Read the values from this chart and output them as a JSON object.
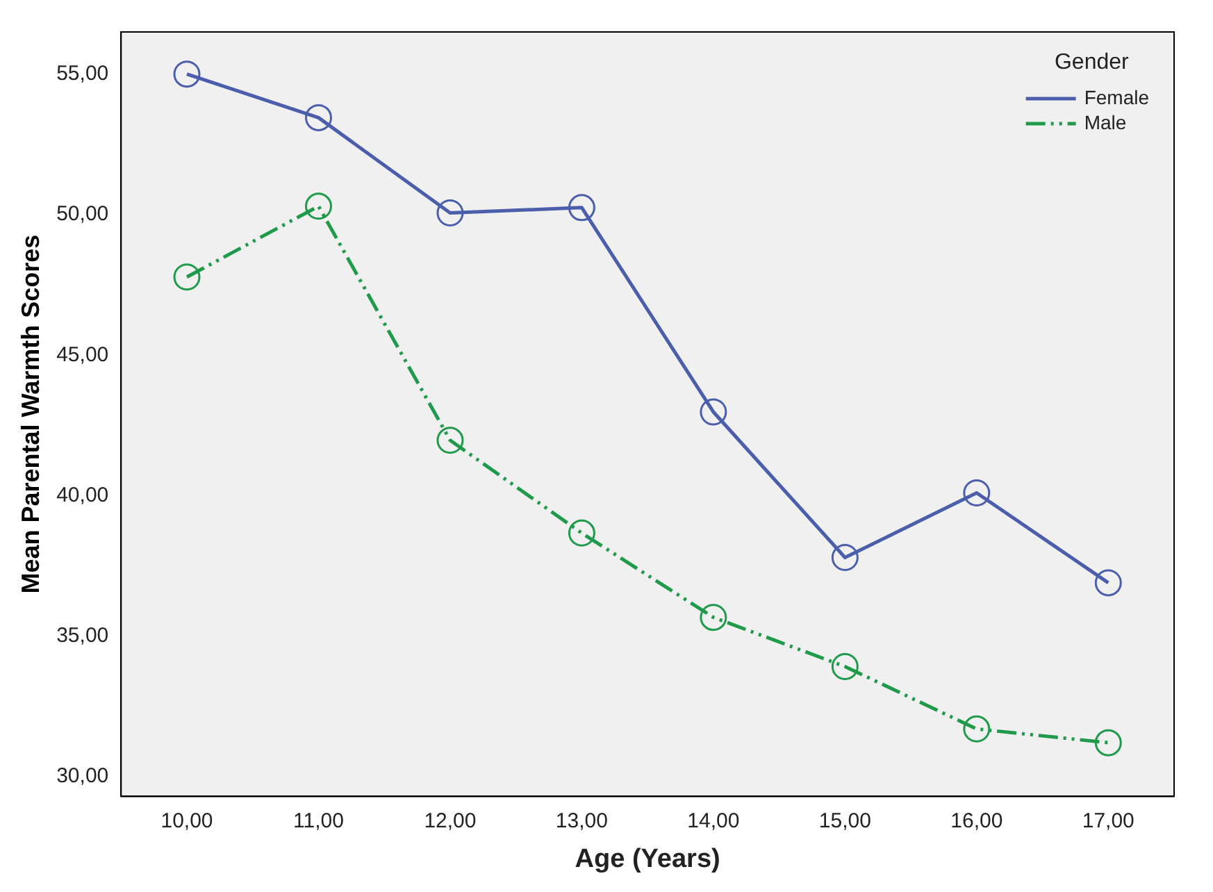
{
  "chart_data": {
    "type": "line",
    "xlabel": "Age (Years)",
    "ylabel": "Mean Parental Warmth Scores",
    "legend_title": "Gender",
    "categories": [
      "10,00",
      "11,00",
      "12,00",
      "13,00",
      "14,00",
      "15,00",
      "16,00",
      "17,00"
    ],
    "series": [
      {
        "name": "Female",
        "color": "#4a5eab",
        "line_style": "solid",
        "values": [
          55.0,
          53.45,
          50.06,
          50.25,
          42.98,
          37.8,
          40.1,
          36.9
        ]
      },
      {
        "name": "Male",
        "color": "#1f9a4a",
        "line_style": "dashed",
        "values": [
          47.78,
          50.3,
          41.97,
          38.67,
          35.67,
          33.92,
          31.7,
          31.21
        ]
      }
    ],
    "ylim": [
      29.3,
      56.5
    ],
    "yticks": [
      {
        "value": 30,
        "label": "30,00"
      },
      {
        "value": 35,
        "label": "35,00"
      },
      {
        "value": 40,
        "label": "40,00"
      },
      {
        "value": 45,
        "label": "45,00"
      },
      {
        "value": 50,
        "label": "50,00"
      },
      {
        "value": 55,
        "label": "55,00"
      }
    ],
    "grid": false,
    "legend": "top right",
    "marker": "circle"
  }
}
